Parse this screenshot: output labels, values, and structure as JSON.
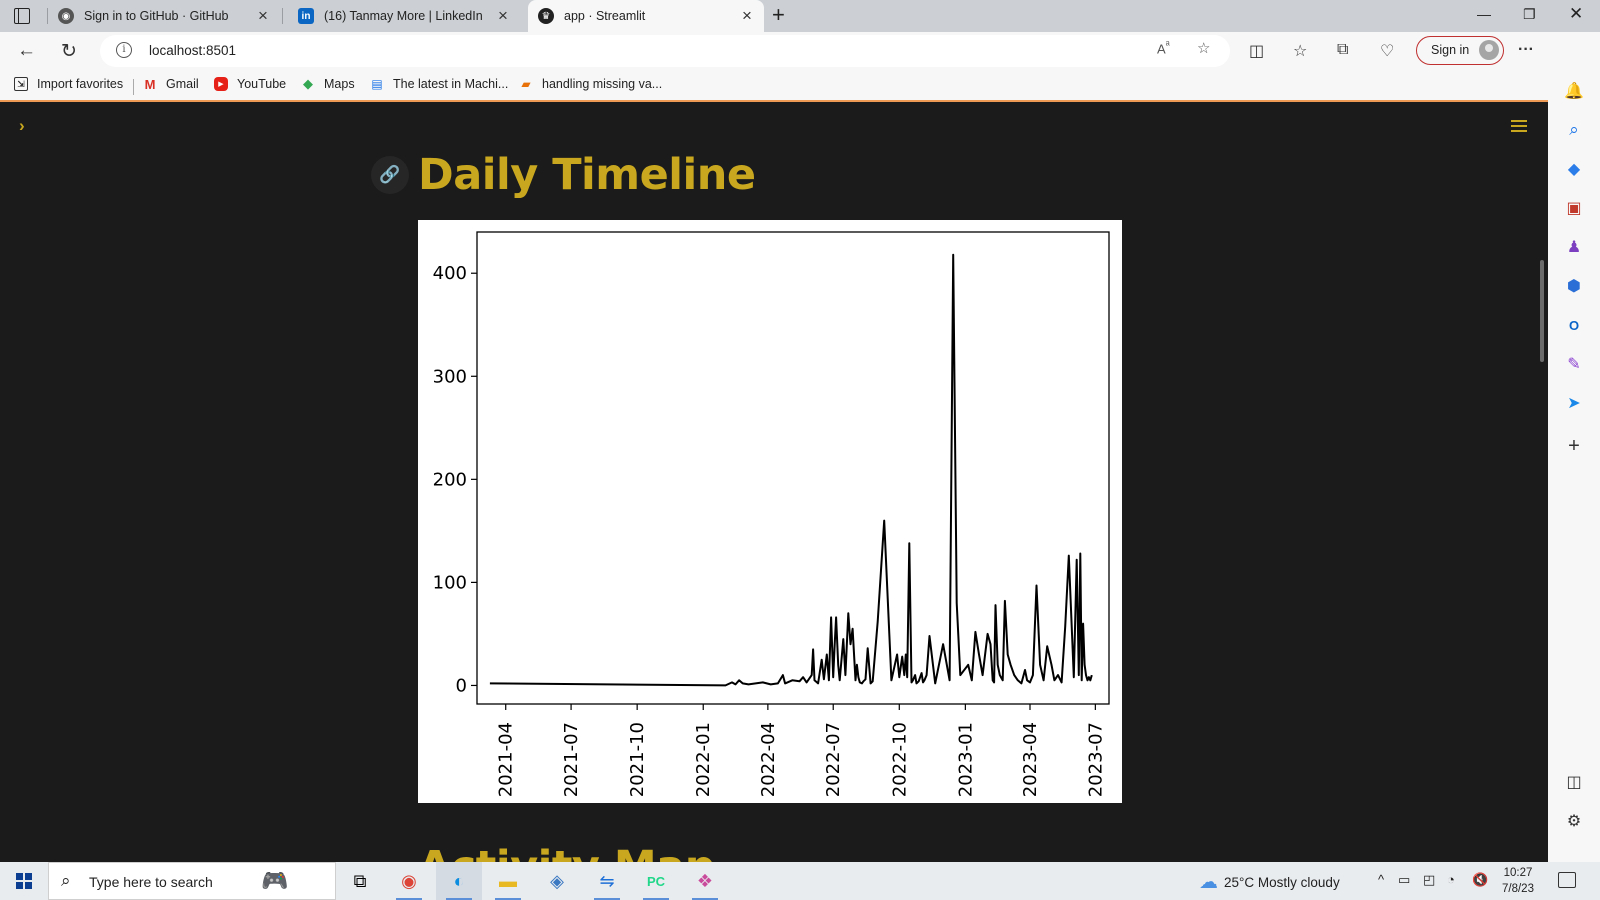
{
  "browser": {
    "tabs": [
      {
        "title": "Sign in to GitHub · GitHub",
        "icon": "github-icon"
      },
      {
        "title": "(16) Tanmay More | LinkedIn",
        "icon": "linkedin-icon"
      },
      {
        "title": "app · Streamlit",
        "icon": "streamlit-icon",
        "active": true
      }
    ],
    "url": "localhost:8501",
    "signin_label": "Sign in",
    "favorites": [
      {
        "label": "Import favorites",
        "icon": "import-icon"
      },
      {
        "label": "Gmail",
        "icon": "gmail-icon"
      },
      {
        "label": "YouTube",
        "icon": "youtube-icon"
      },
      {
        "label": "Maps",
        "icon": "maps-icon"
      },
      {
        "label": "The latest in Machi...",
        "icon": "news-icon"
      },
      {
        "label": "handling missing va...",
        "icon": "bookmark-icon"
      }
    ]
  },
  "app": {
    "heading": "Daily Timeline",
    "next_heading": "Activity Map"
  },
  "chart_data": {
    "type": "line",
    "title": "",
    "xlabel": "",
    "ylabel": "",
    "x_tick_labels": [
      "2021-04",
      "2021-07",
      "2021-10",
      "2022-01",
      "2022-04",
      "2022-07",
      "2022-10",
      "2023-01",
      "2023-04",
      "2023-07"
    ],
    "y_tick_labels": [
      "0",
      "100",
      "200",
      "300",
      "400"
    ],
    "ylim": [
      -18,
      440
    ],
    "xlim": [
      "2021-02-20",
      "2023-07-20"
    ],
    "grid": false,
    "series": [
      {
        "x": [
          "2021-03-10",
          "2022-02-01",
          "2022-02-10",
          "2022-02-15",
          "2022-02-20",
          "2022-02-25",
          "2022-03-05",
          "2022-03-15",
          "2022-03-25",
          "2022-04-05",
          "2022-04-15",
          "2022-04-22",
          "2022-04-25",
          "2022-05-05",
          "2022-05-15",
          "2022-05-20",
          "2022-05-25",
          "2022-06-01",
          "2022-06-03",
          "2022-06-05",
          "2022-06-10",
          "2022-06-15",
          "2022-06-18",
          "2022-06-22",
          "2022-06-25",
          "2022-06-28",
          "2022-07-01",
          "2022-07-03",
          "2022-07-05",
          "2022-07-08",
          "2022-07-10",
          "2022-07-15",
          "2022-07-18",
          "2022-07-22",
          "2022-07-25",
          "2022-07-28",
          "2022-08-01",
          "2022-08-03",
          "2022-08-05",
          "2022-08-07",
          "2022-08-10",
          "2022-08-12",
          "2022-08-15",
          "2022-08-18",
          "2022-08-22",
          "2022-08-25",
          "2022-09-01",
          "2022-09-10",
          "2022-09-20",
          "2022-09-28",
          "2022-10-01",
          "2022-10-05",
          "2022-10-08",
          "2022-10-10",
          "2022-10-12",
          "2022-10-15",
          "2022-10-18",
          "2022-10-20",
          "2022-10-23",
          "2022-10-25",
          "2022-10-28",
          "2022-11-01",
          "2022-11-03",
          "2022-11-05",
          "2022-11-08",
          "2022-11-12",
          "2022-11-20",
          "2022-12-01",
          "2022-12-10",
          "2022-12-15",
          "2022-12-20",
          "2022-12-25",
          "2023-01-05",
          "2023-01-10",
          "2023-01-15",
          "2023-01-20",
          "2023-01-25",
          "2023-02-01",
          "2023-02-05",
          "2023-02-08",
          "2023-02-10",
          "2023-02-12",
          "2023-02-15",
          "2023-02-18",
          "2023-02-22",
          "2023-02-25",
          "2023-03-01",
          "2023-03-05",
          "2023-03-10",
          "2023-03-15",
          "2023-03-20",
          "2023-03-25",
          "2023-03-28",
          "2023-04-01",
          "2023-04-05",
          "2023-04-10",
          "2023-04-15",
          "2023-04-20",
          "2023-04-25",
          "2023-05-01",
          "2023-05-05",
          "2023-05-10",
          "2023-05-15",
          "2023-05-20",
          "2023-05-25",
          "2023-06-01",
          "2023-06-05",
          "2023-06-08",
          "2023-06-10",
          "2023-06-12",
          "2023-06-14",
          "2023-06-16",
          "2023-06-18",
          "2023-06-20",
          "2023-06-22",
          "2023-06-24",
          "2023-06-26"
        ],
        "y": [
          2,
          0,
          3,
          1,
          5,
          2,
          1,
          2,
          3,
          1,
          2,
          10,
          2,
          5,
          4,
          8,
          3,
          10,
          35,
          5,
          2,
          25,
          6,
          30,
          5,
          66,
          8,
          40,
          66,
          20,
          5,
          45,
          10,
          70,
          40,
          55,
          5,
          20,
          8,
          3,
          2,
          4,
          6,
          36,
          2,
          4,
          62,
          160,
          5,
          30,
          8,
          28,
          10,
          30,
          8,
          138,
          3,
          5,
          10,
          2,
          4,
          12,
          3,
          5,
          10,
          48,
          2,
          40,
          5,
          418,
          80,
          10,
          20,
          5,
          52,
          30,
          10,
          50,
          40,
          5,
          3,
          78,
          20,
          10,
          5,
          82,
          30,
          20,
          10,
          5,
          2,
          15,
          5,
          3,
          10,
          97,
          20,
          5,
          38,
          20,
          5,
          10,
          3,
          57,
          126,
          8,
          122,
          10,
          128,
          5,
          60,
          20,
          10,
          5,
          8,
          5,
          10
        ]
      }
    ]
  },
  "taskbar": {
    "search_placeholder": "Type here to search",
    "weather": "25°C  Mostly cloudy",
    "time": "10:27",
    "date": "7/8/23"
  }
}
